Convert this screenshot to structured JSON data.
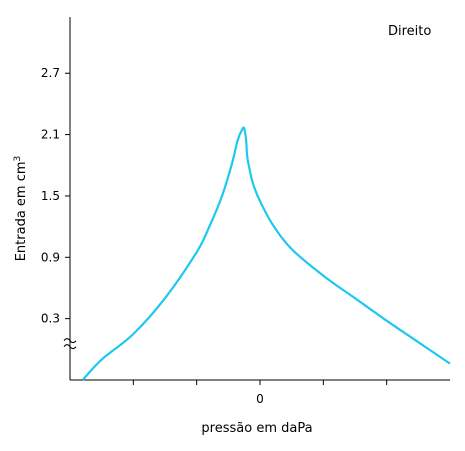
{
  "chart_data": {
    "type": "line",
    "title": "",
    "panel_label": "Direito",
    "xlabel": "pressão em daPa",
    "ylabel": "Entrada em cm",
    "ylabel_superscript": "3",
    "x_tick_labels": [
      "0"
    ],
    "x_tick_label_at": 0,
    "xlim": [
      -300,
      300
    ],
    "x_ticks": [
      -200,
      -100,
      0,
      100,
      200
    ],
    "y_ticks": [
      0.3,
      0.9,
      1.5,
      2.1,
      2.7
    ],
    "y_tick_labels": [
      "0.3",
      "0.9",
      "1.5",
      "2.1",
      "2.7"
    ],
    "ylim": [
      -0.3,
      3.25
    ],
    "y_axis_break": true,
    "grid": false,
    "line_color": "#1ec8ee",
    "series": [
      {
        "x": [
          -280,
          -250,
          -200,
          -150,
          -100,
          -80,
          -60,
          -45,
          -35,
          -28,
          -25,
          -22,
          -20,
          -15,
          -10,
          0,
          20,
          50,
          100,
          150,
          200,
          250,
          300
        ],
        "y": [
          -0.3,
          -0.1,
          0.15,
          0.5,
          0.95,
          1.2,
          1.5,
          1.8,
          2.05,
          2.15,
          2.16,
          2.05,
          1.88,
          1.72,
          1.6,
          1.45,
          1.22,
          0.98,
          0.72,
          0.5,
          0.28,
          0.07,
          -0.14
        ]
      }
    ]
  }
}
